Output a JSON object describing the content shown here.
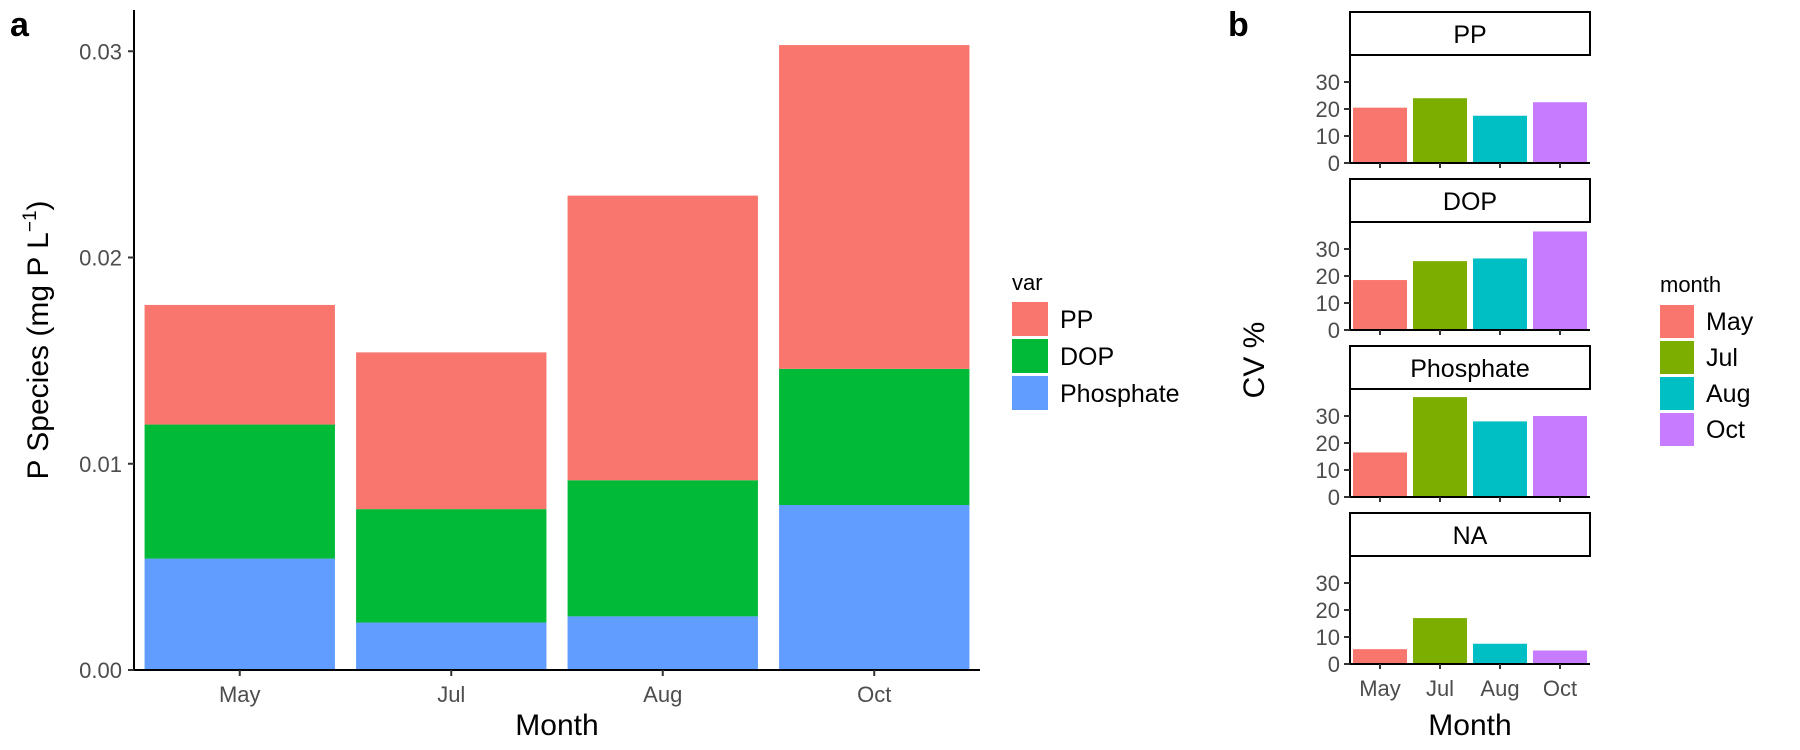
{
  "panels": {
    "a_label": "a",
    "b_label": "b"
  },
  "chart_data": [
    {
      "id": "a",
      "type": "bar",
      "stacked": true,
      "title": "",
      "xlabel": "Month",
      "ylabel": "P Species (mg P L",
      "ylabel_superscript": "−1",
      "ylabel_close": ")",
      "categories": [
        "May",
        "Jul",
        "Aug",
        "Oct"
      ],
      "series": [
        {
          "name": "Phosphate",
          "color": "#619CFF",
          "values": [
            0.0054,
            0.0023,
            0.0026,
            0.008
          ]
        },
        {
          "name": "DOP",
          "color": "#00BA38",
          "values": [
            0.0065,
            0.0055,
            0.0066,
            0.0066
          ]
        },
        {
          "name": "PP",
          "color": "#F8766D",
          "values": [
            0.0058,
            0.0076,
            0.0138,
            0.0157
          ]
        }
      ],
      "ylim": [
        0,
        0.032
      ],
      "yticks": [
        "0.00",
        "0.01",
        "0.02",
        "0.03"
      ],
      "ytick_values": [
        0,
        0.01,
        0.02,
        0.03
      ],
      "grid": false,
      "legend": {
        "title": "var",
        "placement": "right",
        "entries": [
          "PP",
          "DOP",
          "Phosphate"
        ],
        "colors": [
          "#F8766D",
          "#00BA38",
          "#619CFF"
        ]
      }
    },
    {
      "id": "b",
      "type": "bar",
      "faceted": true,
      "title": "",
      "xlabel": "Month",
      "ylabel": "CV %",
      "categories": [
        "May",
        "Jul",
        "Aug",
        "Oct"
      ],
      "colors": [
        "#F8766D",
        "#7CAE00",
        "#00BFC4",
        "#C77CFF"
      ],
      "ylim": [
        0,
        40
      ],
      "yticks": [
        "0",
        "10",
        "20",
        "30"
      ],
      "ytick_values": [
        0,
        10,
        20,
        30
      ],
      "grid": false,
      "facets": [
        {
          "name": "PP",
          "values": [
            20.5,
            24,
            17.5,
            22.5
          ]
        },
        {
          "name": "DOP",
          "values": [
            18.5,
            25.5,
            26.5,
            36.5
          ]
        },
        {
          "name": "Phosphate",
          "values": [
            16.5,
            37,
            28,
            30
          ]
        },
        {
          "name": "NA",
          "values": [
            5.5,
            17,
            7.5,
            5
          ]
        }
      ],
      "legend": {
        "title": "month",
        "placement": "right",
        "entries": [
          "May",
          "Jul",
          "Aug",
          "Oct"
        ],
        "colors": [
          "#F8766D",
          "#7CAE00",
          "#00BFC4",
          "#C77CFF"
        ]
      }
    }
  ]
}
